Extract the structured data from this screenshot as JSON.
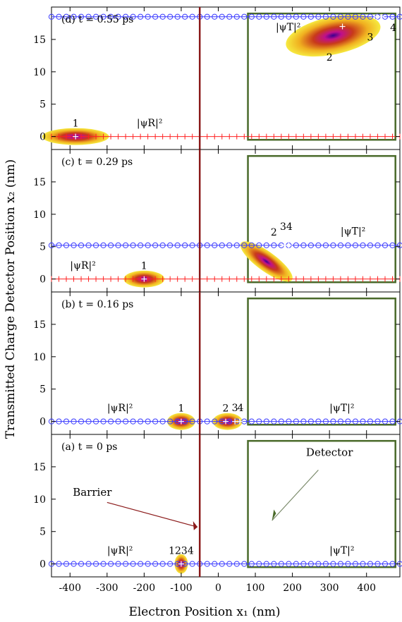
{
  "figure": {
    "xlabel": "Electron Position x₁ (nm)",
    "ylabel": "Transmitted Charge Detector Position x₂ (nm)"
  },
  "chart_data": {
    "type": "heatmap",
    "xlim": [
      -450,
      490
    ],
    "ylim": [
      -2,
      20
    ],
    "x_ticks": [
      -400,
      -300,
      -200,
      -100,
      0,
      100,
      200,
      300,
      400
    ],
    "y_ticks": [
      0,
      5,
      10,
      15
    ],
    "barrier_x": -50,
    "detector_region": {
      "x": [
        80,
        478
      ],
      "y": [
        -0.5,
        19
      ]
    },
    "colors": {
      "barrier": "#8b1a1a",
      "detector": "#4a6a2a",
      "trajectory_T": "#3b3bff",
      "trajectory_R": "#ff2020"
    },
    "panels": [
      {
        "title": "(d) t = 0.55 ps",
        "psi_R_label": "|ψR|²",
        "psi_T_label": "|ψT|²",
        "line_T_y": 18.5,
        "line_R_y": 0,
        "blobs": [
          {
            "cx": -385,
            "cy": 0,
            "rx": 90,
            "ry": 1.3,
            "rot": 0
          },
          {
            "cx": 310,
            "cy": 15.6,
            "rx": 130,
            "ry": 2.9,
            "rot": 12
          }
        ],
        "particles": [
          {
            "label": "1",
            "x": -385,
            "y": 0
          },
          {
            "label": "2",
            "x": 335,
            "y": 17,
            "lx": 300,
            "ly": 11.7
          },
          {
            "label": "3",
            "x": 428,
            "y": 18.5,
            "lx": 410,
            "ly": 14.8
          },
          {
            "label": "4",
            "x": 440,
            "y": 18.5,
            "lx": 472,
            "ly": 16.3
          }
        ],
        "annotations": [
          {
            "text": "Barrier",
            "show": false
          }
        ]
      },
      {
        "title": "(c) t = 0.29 ps",
        "psi_R_label": "|ψR|²",
        "psi_T_label": "|ψT|²",
        "line_T_y": 5.2,
        "line_R_y": 0,
        "blobs": [
          {
            "cx": -200,
            "cy": 0,
            "rx": 55,
            "ry": 1.3,
            "rot": 0
          },
          {
            "cx": 130,
            "cy": 2.7,
            "rx": 85,
            "ry": 1.5,
            "rot": -36
          }
        ],
        "particles": [
          {
            "label": "1",
            "x": -200,
            "y": 0
          },
          {
            "label": "2",
            "x": 160,
            "y": 3.8,
            "lx": 150,
            "ly": 6.7
          },
          {
            "label": "3",
            "x": 178,
            "y": 5.2,
            "lx": 175,
            "ly": 7.6
          },
          {
            "label": "4",
            "x": 190,
            "y": 5.2,
            "lx": 192,
            "ly": 7.6
          }
        ]
      },
      {
        "title": "(b) t = 0.16 ps",
        "psi_R_label": "|ψR|²",
        "psi_T_label": "|ψT|²",
        "line_T_y": 0,
        "line_R_y": 0,
        "blobs": [
          {
            "cx": -100,
            "cy": 0,
            "rx": 38,
            "ry": 1.3,
            "rot": 0
          },
          {
            "cx": 25,
            "cy": 0,
            "rx": 40,
            "ry": 1.3,
            "rot": 0
          }
        ],
        "particles": [
          {
            "label": "1",
            "x": -100,
            "y": 0
          },
          {
            "label": "2",
            "x": 20,
            "y": 0
          },
          {
            "label": "3",
            "x": 45,
            "y": 0,
            "lx": 45,
            "ly": 1.6
          },
          {
            "label": "4",
            "x": 58,
            "y": 0,
            "lx": 60,
            "ly": 1.6
          }
        ]
      },
      {
        "title": "(a) t = 0 ps",
        "psi_R_label": "|ψR|²",
        "psi_T_label": "|ψT|²",
        "line_T_y": 0,
        "line_R_y": 0,
        "blobs": [
          {
            "cx": -100,
            "cy": 0,
            "rx": 18,
            "ry": 1.5,
            "rot": 0
          }
        ],
        "particles": [
          {
            "label": "1234",
            "x": -100,
            "y": 0
          }
        ],
        "barrier_label": "Barrier",
        "detector_label": "Detector"
      }
    ]
  }
}
